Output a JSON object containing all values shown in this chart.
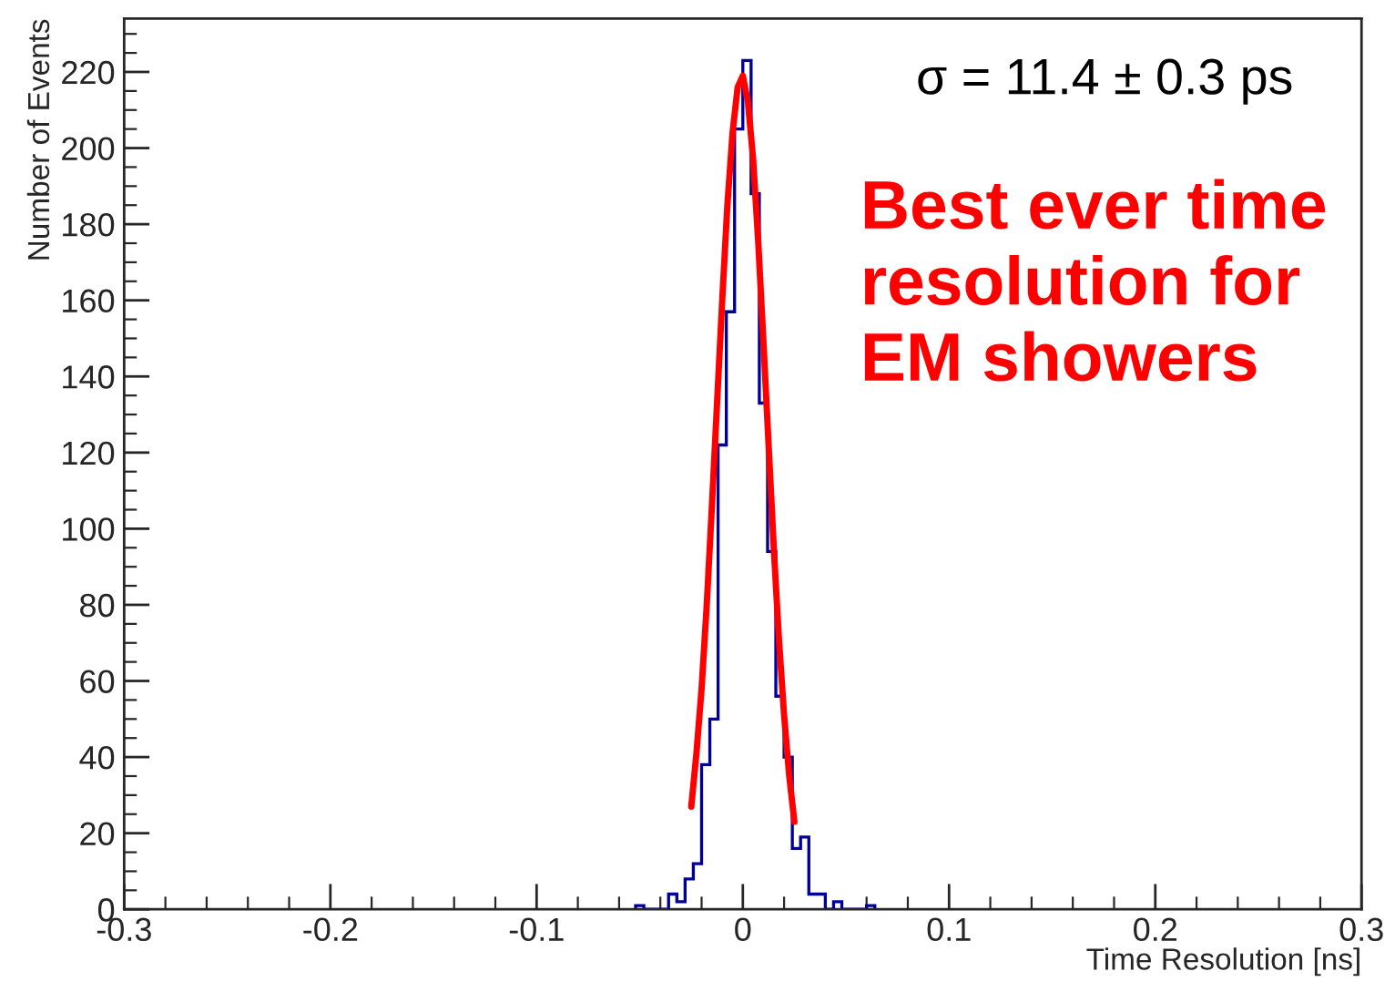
{
  "chart_data": {
    "type": "histogram",
    "xlabel": "Time Resolution [ns]",
    "ylabel": "Number of Events",
    "xlim": [
      -0.3,
      0.3
    ],
    "xticks": [
      -0.3,
      -0.2,
      -0.1,
      0,
      0.1,
      0.2,
      0.3
    ],
    "ylim": [
      0,
      234
    ],
    "yticks": [
      0,
      20,
      40,
      60,
      80,
      100,
      120,
      140,
      160,
      180,
      200,
      220
    ],
    "grid": false,
    "series": [
      {
        "color": "#000099",
        "bins": [
          -0.052,
          -0.048,
          -0.044,
          -0.04,
          -0.036,
          -0.032,
          -0.028,
          -0.024,
          -0.02,
          -0.016,
          -0.012,
          -0.008,
          -0.004,
          0,
          0.004,
          0.008,
          0.012,
          0.016,
          0.02,
          0.024,
          0.028,
          0.032,
          0.036,
          0.04,
          0.044,
          0.048,
          0.052,
          0.056,
          0.06,
          0.064
        ],
        "values": [
          1,
          0,
          0,
          0,
          4,
          2,
          8,
          12,
          38,
          50,
          122,
          157,
          205,
          223,
          188,
          133,
          94,
          56,
          40,
          16,
          19,
          4,
          4,
          0,
          2,
          0,
          0,
          0,
          1
        ]
      },
      {
        "type": "line",
        "color": "#ff0000",
        "x": [
          -0.025,
          -0.0225,
          -0.02,
          -0.0175,
          -0.015,
          -0.0125,
          -0.01,
          -0.0075,
          -0.005,
          -0.0025,
          0,
          0.0025,
          0.005,
          0.0075,
          0.01,
          0.0125,
          0.015,
          0.0175,
          0.02,
          0.0225,
          0.025
        ],
        "values": [
          27,
          41,
          58,
          80,
          106,
          133,
          160,
          185,
          204,
          216,
          219,
          212,
          197,
          175,
          149,
          122,
          95,
          71,
          51,
          35,
          23
        ]
      }
    ],
    "annotations": [
      "σ = 11.4 ± 0.3 ps",
      "Best ever time\nresolution for\nEM showers"
    ]
  }
}
